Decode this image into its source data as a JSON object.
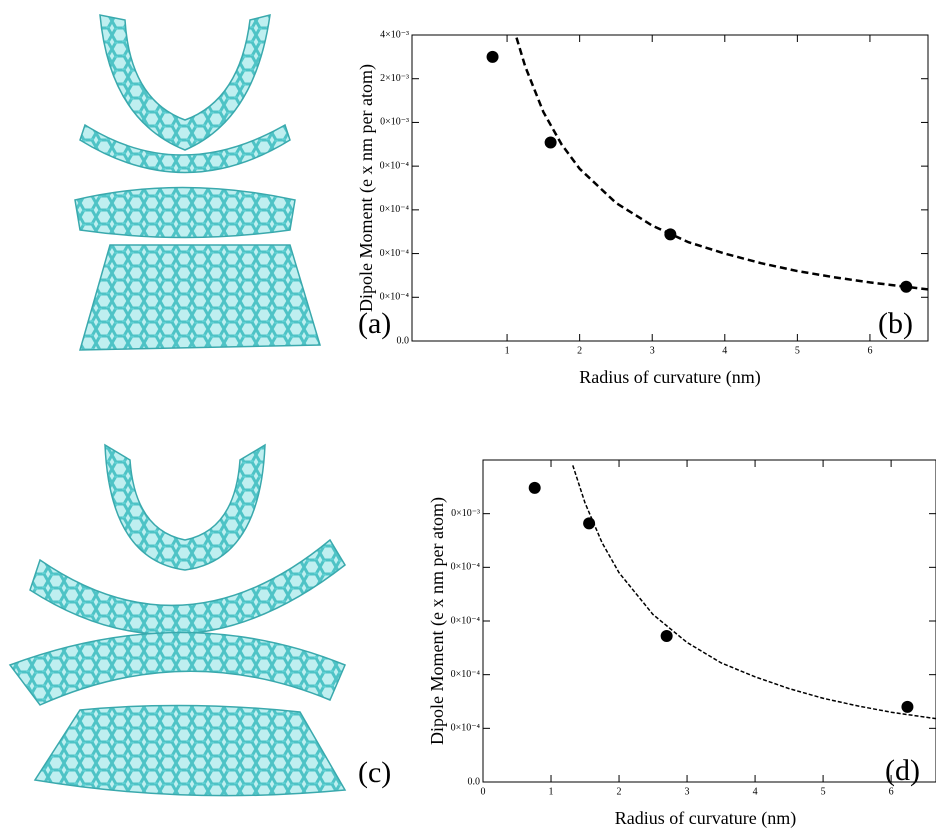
{
  "panels": [
    "(a)",
    "(b)",
    "(c)",
    "(d)"
  ],
  "chart_data": [
    {
      "type": "scatter",
      "xlabel": "Radius of curvature (nm)",
      "ylabel": "Dipole Moment (e x nm per atom)",
      "xlim": [
        -0.31,
        6.8
      ],
      "ylim": [
        0,
        0.0035
      ],
      "xticks": [
        1,
        2,
        3,
        4,
        5,
        6
      ],
      "yticks": [
        {
          "value": 0,
          "label": "0.0"
        },
        {
          "value": 0.0005,
          "label": "0×10⁻⁴"
        },
        {
          "value": 0.001,
          "label": "0×10⁻⁴"
        },
        {
          "value": 0.0015,
          "label": "0×10⁻⁴"
        },
        {
          "value": 0.002,
          "label": "0×10⁻⁴"
        },
        {
          "value": 0.0025,
          "label": "0×10⁻³"
        },
        {
          "value": 0.003,
          "label": "2×10⁻³"
        },
        {
          "value": 0.0035,
          "label": "4×10⁻³"
        }
      ],
      "series": [
        {
          "kind": "points",
          "color": "#000000",
          "x": [
            0.8,
            1.6,
            3.25,
            6.5
          ],
          "values": [
            0.00325,
            0.00227,
            0.00122,
            0.00062
          ]
        },
        {
          "kind": "line",
          "line_style": "dashed",
          "color": "#000000",
          "x": [
            1.13,
            1.25,
            1.5,
            1.75,
            2,
            2.5,
            3,
            3.5,
            4,
            4.5,
            5,
            5.5,
            6,
            6.5,
            6.8
          ],
          "values": [
            0.00347,
            0.00314,
            0.00262,
            0.00225,
            0.00197,
            0.00158,
            0.00132,
            0.00113,
            0.001,
            0.00089,
            0.0008,
            0.00073,
            0.00067,
            0.00062,
            0.00059
          ]
        }
      ]
    },
    {
      "type": "scatter",
      "xlabel": "Radius of curvature (nm)",
      "ylabel": "Dipole Moment (e x nm per atom)",
      "xlim": [
        0,
        6.66
      ],
      "ylim": [
        0,
        0.003
      ],
      "xticks": [
        0,
        1,
        2,
        3,
        4,
        5,
        6
      ],
      "yticks": [
        {
          "value": 0,
          "label": "0.0"
        },
        {
          "value": 0.0005,
          "label": "0×10⁻⁴"
        },
        {
          "value": 0.001,
          "label": "0×10⁻⁴"
        },
        {
          "value": 0.0015,
          "label": "0×10⁻⁴"
        },
        {
          "value": 0.002,
          "label": "0×10⁻⁴"
        },
        {
          "value": 0.0025,
          "label": "0×10⁻³"
        }
      ],
      "series": [
        {
          "kind": "points",
          "color": "#000000",
          "x": [
            0.76,
            1.56,
            2.7,
            6.24
          ],
          "values": [
            0.00274,
            0.00241,
            0.00136,
            0.0007
          ]
        },
        {
          "kind": "line",
          "line_style": "dashed",
          "color": "#000000",
          "x": [
            1.32,
            1.5,
            1.75,
            2,
            2.5,
            3,
            3.5,
            4,
            4.5,
            5,
            5.5,
            6,
            6.66
          ],
          "values": [
            0.00295,
            0.0026,
            0.00223,
            0.00195,
            0.00156,
            0.0013,
            0.00111,
            0.00098,
            0.00087,
            0.00078,
            0.00071,
            0.00065,
            0.00059
          ]
        }
      ]
    }
  ]
}
